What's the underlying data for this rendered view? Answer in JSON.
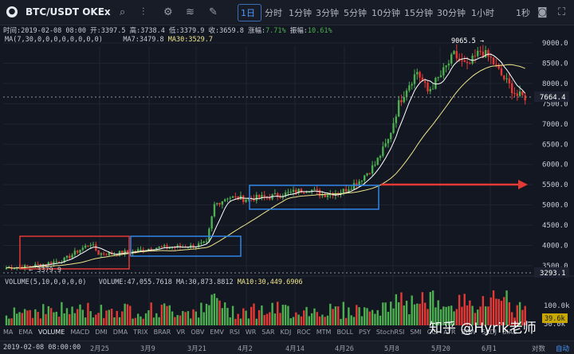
{
  "toolbar": {
    "pair": "BTC/USDT OKEx",
    "intervals": [
      "1日",
      "分时",
      "1分钟",
      "3分钟",
      "5分钟",
      "10分钟",
      "15分钟",
      "30分钟",
      "1小时"
    ],
    "active_interval": "1日",
    "right_label": "1秒"
  },
  "info": {
    "time": "时间:2019-02-08 08:00",
    "open": "开:3397.5",
    "high": "高:3738.4",
    "low": "低:3379.9",
    "close": "收:3659.8",
    "change_label": "涨幅:",
    "change_value": "7.71%",
    "amp_label": "振幅:",
    "amp_value": "10.61%"
  },
  "ma": {
    "params": "MA(7,30,0,0,0,0,0,0,0,0)",
    "ma7": "MA7:3479.8",
    "ma30": "MA30:3529.7"
  },
  "volume_info": {
    "params": "VOLUME(5,10,0,0,0,0)",
    "volume": "VOLUME:47,055.7618",
    "ma30": "MA:30,873.8812",
    "ma10": "MA10:30,449.6906"
  },
  "price_axis": [
    "9000.0",
    "8500.0",
    "8000.0",
    "7500.0",
    "7000.0",
    "6500.0",
    "6000.0",
    "5500.0",
    "5000.0",
    "4500.0",
    "4000.0",
    "3500.0"
  ],
  "current_price": "7664.4",
  "low_marker": "3293.1",
  "high_annotation": "9065.5",
  "low_annotation": "3379.9",
  "vol_axis": [
    "100.0k",
    "50.0k"
  ],
  "vol_current": "39.6k",
  "indicators": [
    "MA",
    "EMA",
    "VOLUME",
    "MACD",
    "DMI",
    "DMA",
    "TRIX",
    "BRAR",
    "VR",
    "OBV",
    "EMV",
    "RSI",
    "WR",
    "SAR",
    "KDJ",
    "ROC",
    "MTM",
    "BOLL",
    "PSY",
    "StochRSI",
    "SMI",
    "CCI",
    "ATR",
    "BBW",
    "SKDJ",
    "BIAS"
  ],
  "selected_indicator": "VOLUME",
  "dates": {
    "current": "2019-02-08 08:00:00",
    "labels": [
      "2月25",
      "3月9",
      "3月21",
      "4月2",
      "4月14",
      "4月26",
      "5月8",
      "5月20",
      "6月1"
    ],
    "right1": "对数",
    "right2": "自动"
  },
  "watermark": "知乎 @Hyrik老师",
  "colors": {
    "up": "#4caf50",
    "down": "#e53935",
    "ma7": "#ffffff",
    "ma30": "#f0e68c",
    "box_red": "#e53935",
    "box_blue": "#2f86ea",
    "arrow": "#e53935",
    "accent": "#4c9aff"
  }
}
